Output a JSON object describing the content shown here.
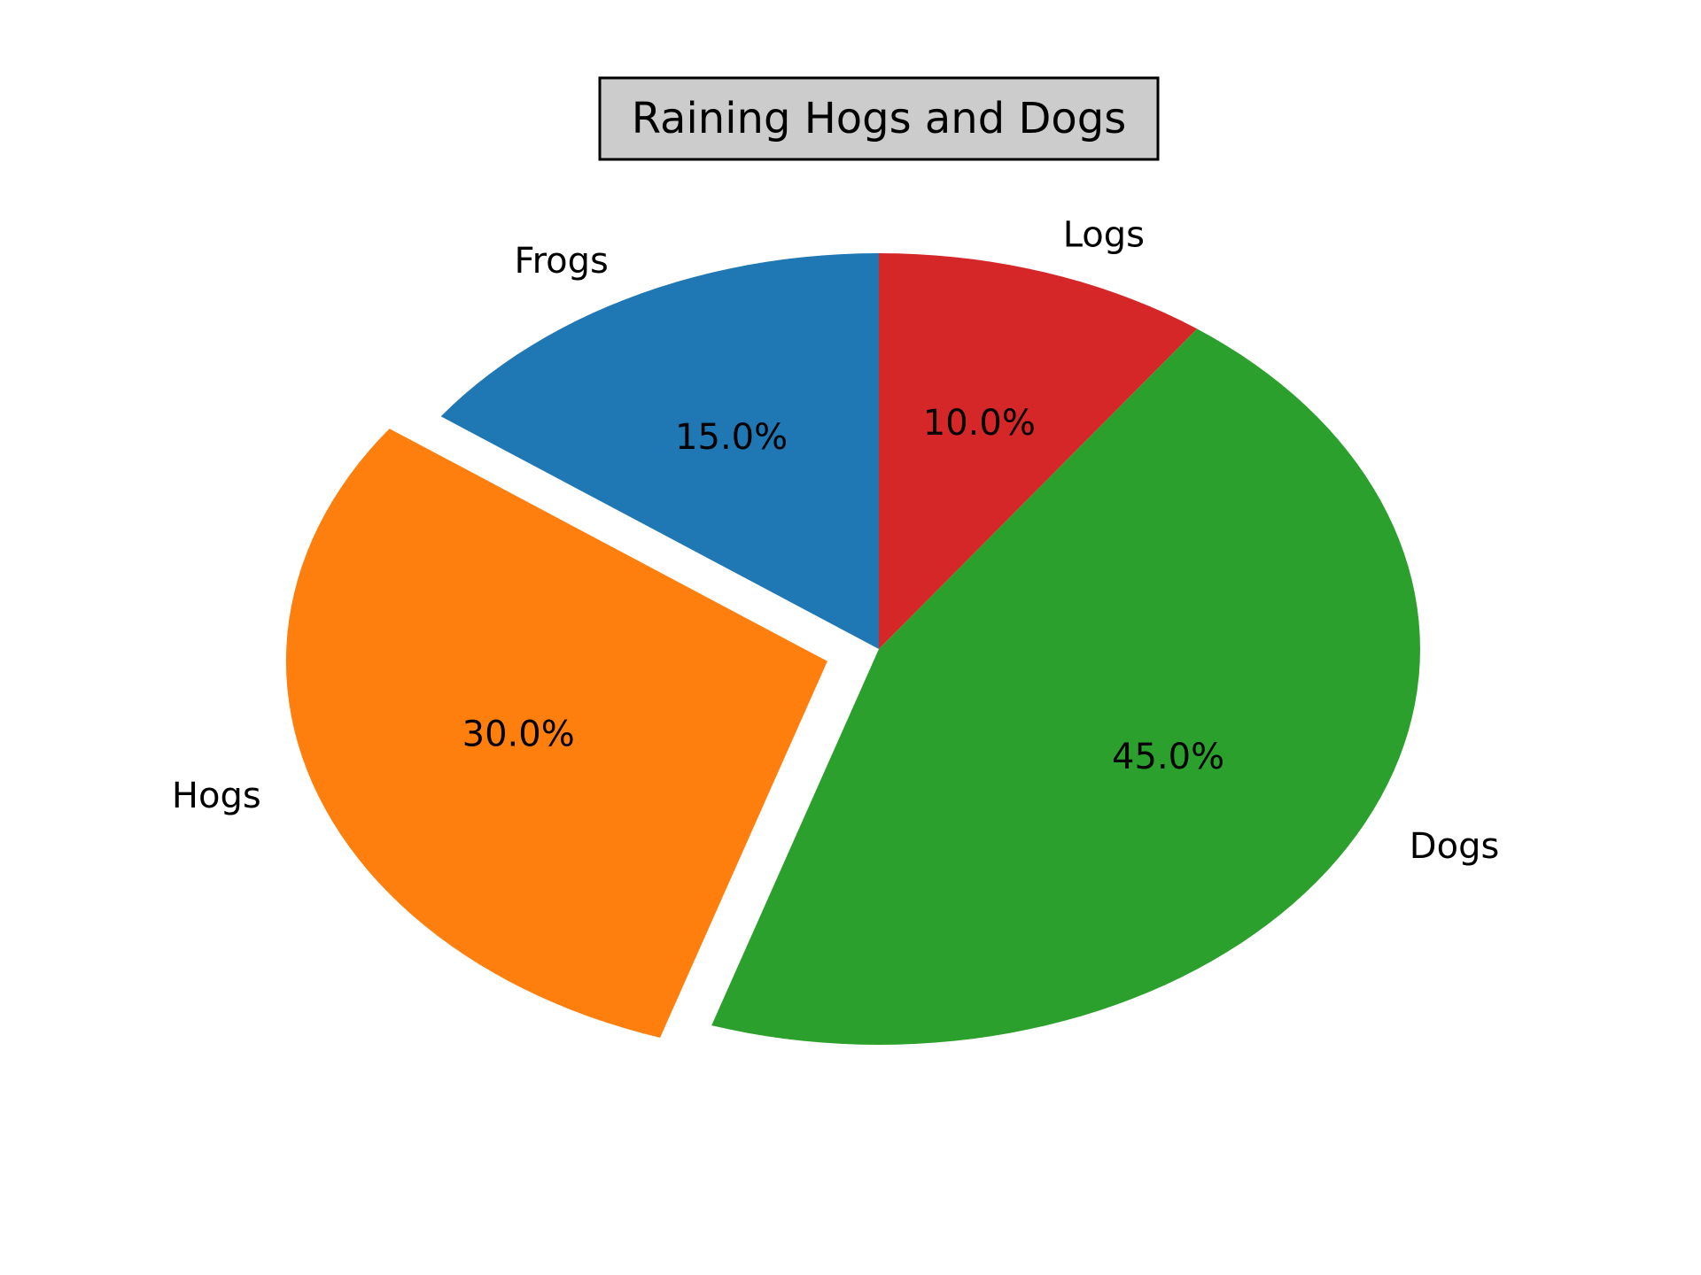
{
  "chart_data": {
    "type": "pie",
    "title": "Raining Hogs and Dogs",
    "slices": [
      {
        "label": "Frogs",
        "value": 15,
        "pct_label": "15.0%",
        "color": "#1f77b4",
        "explode": 0
      },
      {
        "label": "Hogs",
        "value": 30,
        "pct_label": "30.0%",
        "color": "#ff7f0e",
        "explode": 0.1
      },
      {
        "label": "Dogs",
        "value": 45,
        "pct_label": "45.0%",
        "color": "#2ca02c",
        "explode": 0
      },
      {
        "label": "Logs",
        "value": 10,
        "pct_label": "10.0%",
        "color": "#d62728",
        "explode": 0
      }
    ],
    "start_angle_deg": 90,
    "direction": "counterclockwise",
    "title_box": {
      "facecolor": "#cccccc",
      "edgecolor": "#000000"
    }
  }
}
